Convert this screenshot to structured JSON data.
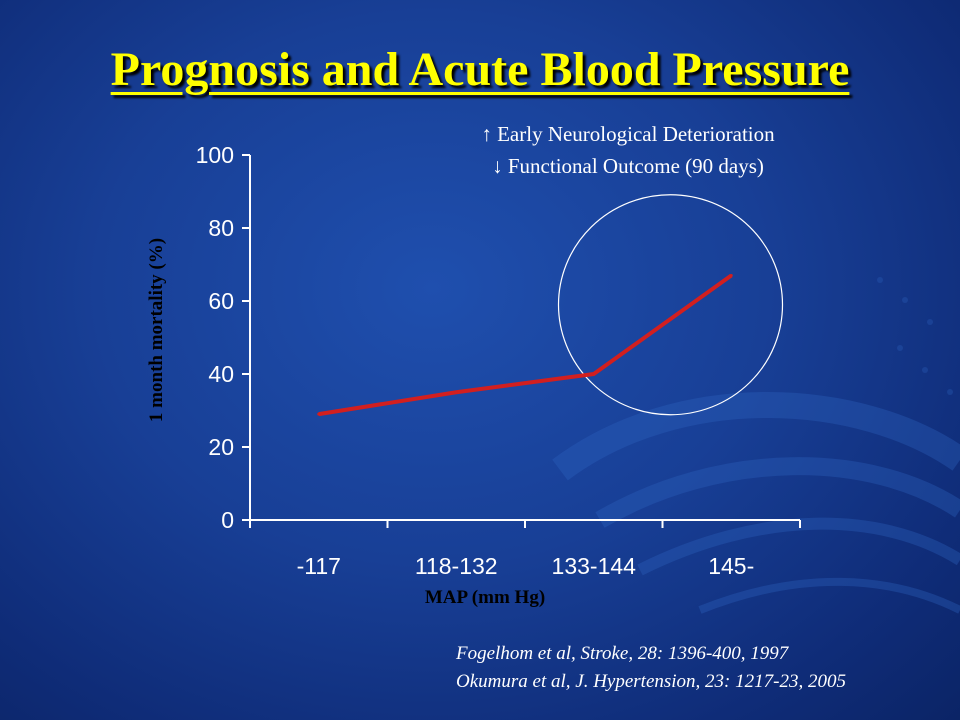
{
  "slide": {
    "title": "Prognosis and Acute Blood Pressure",
    "annotation_line1": "↑ Early Neurological Deterioration",
    "annotation_line2": "↓ Functional Outcome (90 days)",
    "references": [
      "Fogelhom et al, Stroke, 28: 1396-400, 1997",
      "Okumura et al, J. Hypertension, 23: 1217-23, 2005"
    ]
  },
  "colors": {
    "title": "#ffff00",
    "line": "#d21f1f",
    "axis": "#ffffff",
    "axis_label": "#000000",
    "highlight_circle": "#ffffff"
  },
  "chart_data": {
    "type": "line",
    "categories": [
      "-117",
      "118-132",
      "133-144",
      "145-"
    ],
    "series": [
      {
        "values": [
          29,
          35,
          40,
          67
        ]
      }
    ],
    "xlabel": "MAP (mm Hg)",
    "ylabel": "1 month mortality (%)",
    "ylim": [
      0,
      100
    ],
    "yticks": [
      0,
      20,
      40,
      60,
      80,
      100
    ],
    "grid": false,
    "legend": "none"
  }
}
